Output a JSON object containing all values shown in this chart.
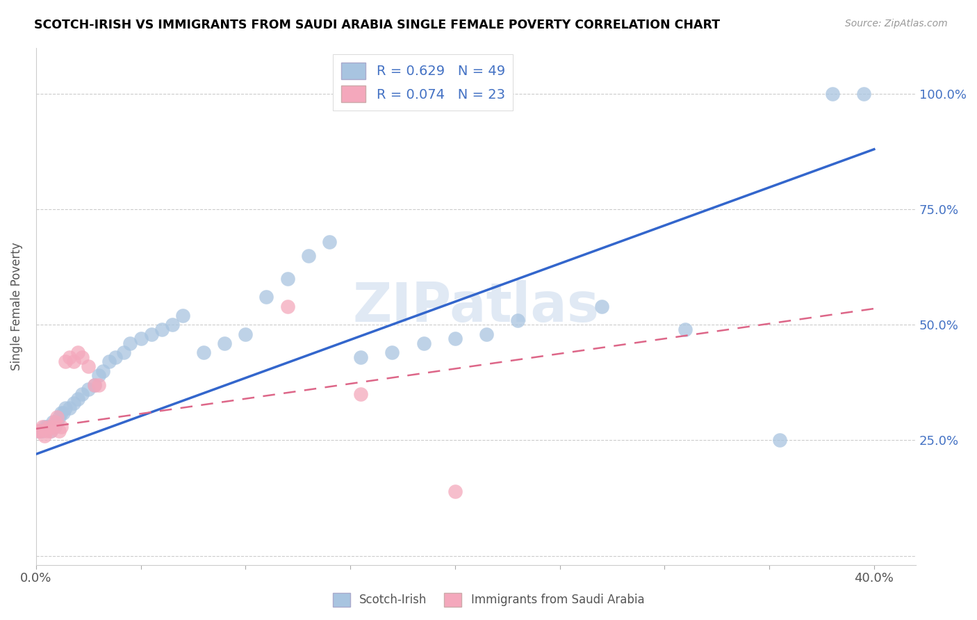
{
  "title": "SCOTCH-IRISH VS IMMIGRANTS FROM SAUDI ARABIA SINGLE FEMALE POVERTY CORRELATION CHART",
  "source": "Source: ZipAtlas.com",
  "ylabel": "Single Female Poverty",
  "xlim": [
    0.0,
    0.42
  ],
  "ylim": [
    -0.02,
    1.1
  ],
  "xticks": [
    0.0,
    0.05,
    0.1,
    0.15,
    0.2,
    0.25,
    0.3,
    0.35,
    0.4
  ],
  "yticks": [
    0.0,
    0.25,
    0.5,
    0.75,
    1.0
  ],
  "ytick_labels": [
    "",
    "25.0%",
    "50.0%",
    "75.0%",
    "100.0%"
  ],
  "blue_R": 0.629,
  "blue_N": 49,
  "pink_R": 0.074,
  "pink_N": 23,
  "blue_color": "#a8c4e0",
  "pink_color": "#f4a8bc",
  "blue_line_color": "#3366cc",
  "pink_line_color": "#dd6688",
  "legend_text_color": "#4472c4",
  "watermark": "ZIPatlas",
  "blue_scatter_x": [
    0.001,
    0.002,
    0.003,
    0.004,
    0.005,
    0.006,
    0.007,
    0.008,
    0.009,
    0.01,
    0.011,
    0.012,
    0.013,
    0.014,
    0.016,
    0.018,
    0.02,
    0.022,
    0.025,
    0.028,
    0.03,
    0.032,
    0.035,
    0.038,
    0.042,
    0.045,
    0.05,
    0.055,
    0.06,
    0.065,
    0.07,
    0.08,
    0.09,
    0.1,
    0.11,
    0.12,
    0.13,
    0.14,
    0.155,
    0.17,
    0.185,
    0.2,
    0.215,
    0.23,
    0.27,
    0.31,
    0.355,
    0.38,
    0.395
  ],
  "blue_scatter_y": [
    0.27,
    0.27,
    0.27,
    0.28,
    0.28,
    0.28,
    0.27,
    0.29,
    0.28,
    0.29,
    0.3,
    0.31,
    0.31,
    0.32,
    0.32,
    0.33,
    0.34,
    0.35,
    0.36,
    0.37,
    0.39,
    0.4,
    0.42,
    0.43,
    0.44,
    0.46,
    0.47,
    0.48,
    0.49,
    0.5,
    0.52,
    0.44,
    0.46,
    0.48,
    0.56,
    0.6,
    0.65,
    0.68,
    0.43,
    0.44,
    0.46,
    0.47,
    0.48,
    0.51,
    0.54,
    0.49,
    0.25,
    1.0,
    1.0
  ],
  "pink_scatter_x": [
    0.001,
    0.002,
    0.003,
    0.004,
    0.005,
    0.006,
    0.007,
    0.008,
    0.009,
    0.01,
    0.011,
    0.012,
    0.014,
    0.016,
    0.018,
    0.02,
    0.022,
    0.025,
    0.028,
    0.03,
    0.12,
    0.155,
    0.2
  ],
  "pink_scatter_y": [
    0.27,
    0.27,
    0.28,
    0.26,
    0.27,
    0.28,
    0.27,
    0.28,
    0.29,
    0.3,
    0.27,
    0.28,
    0.42,
    0.43,
    0.42,
    0.44,
    0.43,
    0.41,
    0.37,
    0.37,
    0.54,
    0.35,
    0.14
  ],
  "blue_line_x": [
    0.0,
    0.4
  ],
  "blue_line_y": [
    0.22,
    0.88
  ],
  "pink_line_x": [
    0.0,
    0.4
  ],
  "pink_line_y": [
    0.275,
    0.535
  ]
}
